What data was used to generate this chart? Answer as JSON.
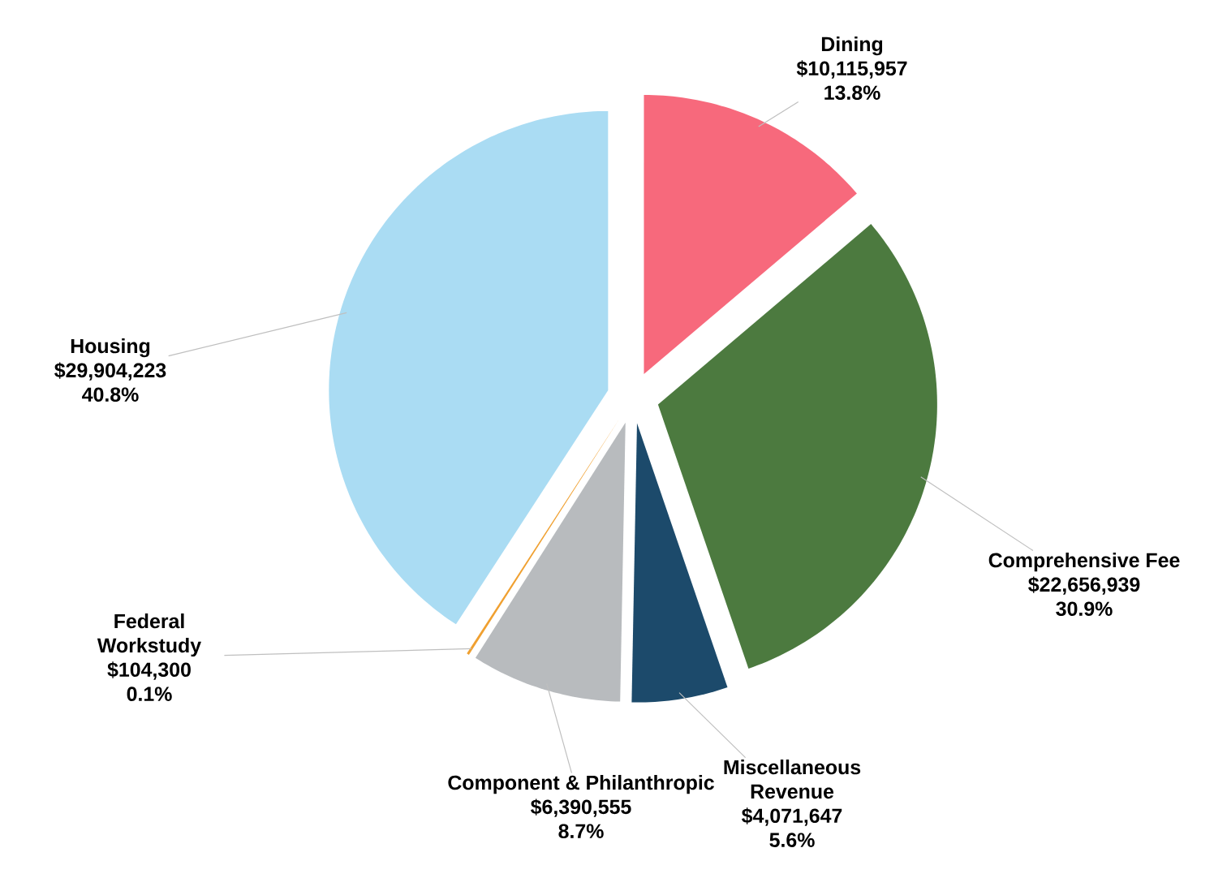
{
  "chart_data": {
    "type": "pie",
    "categories": [
      "Dining",
      "Comprehensive Fee",
      "Miscellaneous Revenue",
      "Component & Philanthropic",
      "Federal Workstudy",
      "Housing"
    ],
    "values": [
      10115957,
      22656939,
      4071647,
      6390555,
      104300,
      29904223
    ],
    "value_labels": [
      "$10,115,957",
      "$22,656,939",
      "$4,071,647",
      "$6,390,555",
      "$104,300",
      "$29,904,223"
    ],
    "annotations": [
      "13.8%",
      "30.9%",
      "5.6%",
      "8.7%",
      "0.1%",
      "40.8%"
    ],
    "colors": [
      "#f7697c",
      "#4c7a3f",
      "#1c4a6b",
      "#b8bbbe",
      "#f0a030",
      "#aadcf3"
    ]
  }
}
